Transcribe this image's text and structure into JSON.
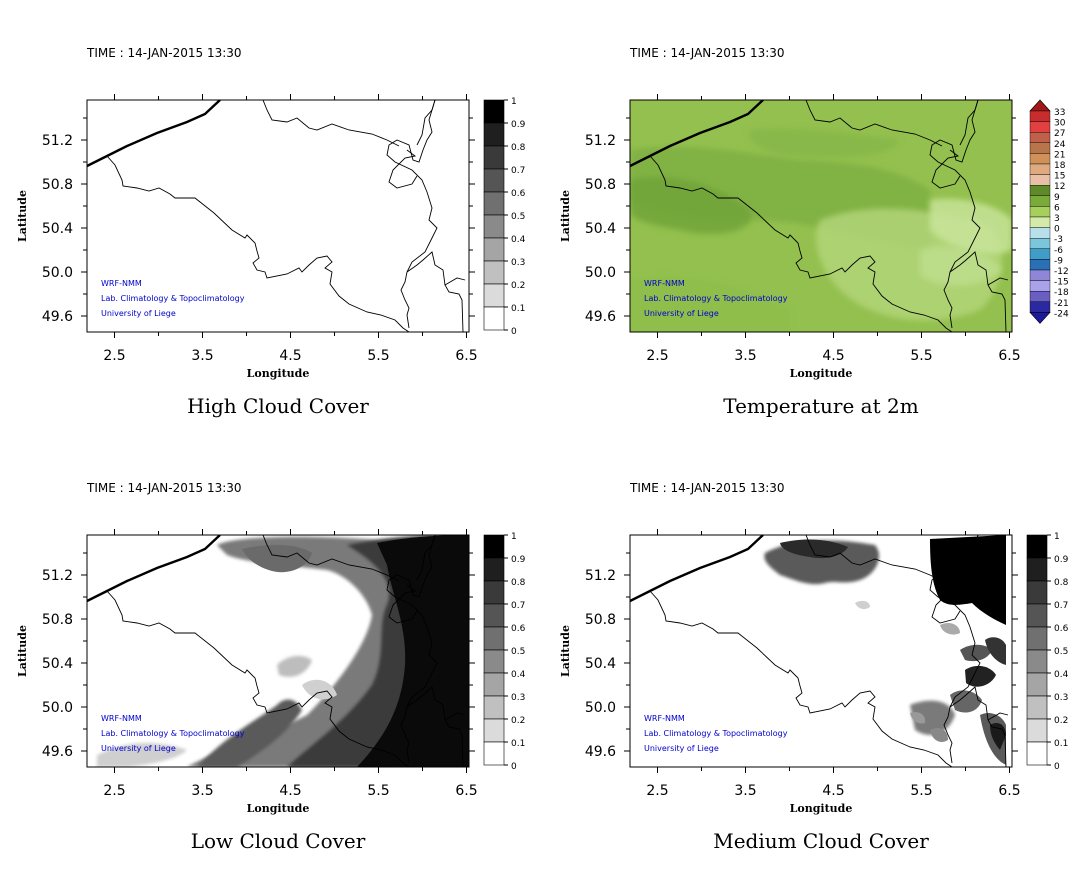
{
  "time_label": "TIME : 14-JAN-2015 13:30",
  "axes": {
    "xlabel": "Longitude",
    "ylabel": "Latitude",
    "xticks": [
      "2.5",
      "3.5",
      "4.5",
      "5.5",
      "6.5"
    ],
    "yticks": [
      "51.2",
      "50.8",
      "50.4",
      "50.0",
      "49.6"
    ]
  },
  "credits": [
    "WRF-NMM",
    "Lab. Climatology & Topoclimatology",
    "University of Liege"
  ],
  "panels": [
    {
      "id": "high-cloud",
      "title": "High Cloud Cover",
      "legend": {
        "type": "gray",
        "ticks": [
          "1",
          "0.9",
          "0.8",
          "0.7",
          "0.6",
          "0.5",
          "0.4",
          "0.3",
          "0.2",
          "0.1",
          "0"
        ]
      }
    },
    {
      "id": "temperature",
      "title": "Temperature at 2m",
      "legend": {
        "type": "temp",
        "ticks": [
          "33",
          "30",
          "27",
          "24",
          "21",
          "18",
          "15",
          "12",
          "9",
          "6",
          "3",
          "0",
          "-3",
          "-6",
          "-9",
          "-12",
          "-15",
          "-18",
          "-21",
          "-24"
        ]
      }
    },
    {
      "id": "low-cloud",
      "title": "Low Cloud Cover",
      "legend": {
        "type": "gray",
        "ticks": [
          "1",
          "0.9",
          "0.8",
          "0.7",
          "0.6",
          "0.5",
          "0.4",
          "0.3",
          "0.2",
          "0.1",
          "0"
        ]
      }
    },
    {
      "id": "medium-cloud",
      "title": "Medium Cloud Cover",
      "legend": {
        "type": "gray",
        "ticks": [
          "1",
          "0.9",
          "0.8",
          "0.7",
          "0.6",
          "0.5",
          "0.4",
          "0.3",
          "0.2",
          "0.1",
          "0"
        ]
      }
    }
  ],
  "colors": {
    "credit_text": "#0000cc",
    "temp_field": "#8fbf48",
    "cloud_dark": "#000000",
    "cloud_mid": "#666666"
  }
}
